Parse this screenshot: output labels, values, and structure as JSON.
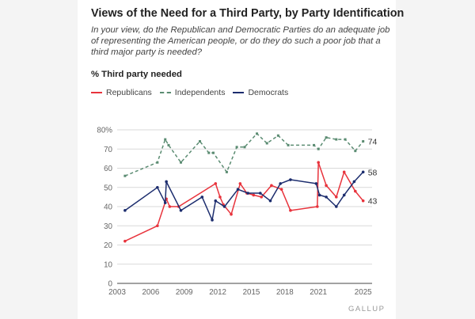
{
  "chart_data": {
    "type": "line",
    "title": "Views of the Need for a Third Party, by Party Identification",
    "subtitle": "In your view, do the Republican and Democratic Parties do an adequate job of representing the American people, or do they do such a poor job that a third major party is needed?",
    "measure": "% Third party needed",
    "xlim": [
      2003,
      2025.8
    ],
    "ylim": [
      0,
      80
    ],
    "x_ticks": [
      "2003",
      "2006",
      "2009",
      "2012",
      "2015",
      "2018",
      "2021",
      "2025"
    ],
    "y_ticks": [
      "0",
      "10",
      "20",
      "30",
      "40",
      "50",
      "60",
      "70",
      "80%"
    ],
    "grid": true,
    "legend_position": "top-left",
    "series": [
      {
        "name": "Republicans",
        "color": "#e8333c",
        "style": "solid",
        "end_label": "43",
        "points": [
          [
            2003.7,
            22
          ],
          [
            2006.6,
            30
          ],
          [
            2007.4,
            44
          ],
          [
            2007.7,
            40
          ],
          [
            2008.5,
            40
          ],
          [
            2011.8,
            52
          ],
          [
            2012.2,
            45
          ],
          [
            2012.5,
            41
          ],
          [
            2013.2,
            36
          ],
          [
            2014.0,
            52
          ],
          [
            2014.6,
            47
          ],
          [
            2015.2,
            46
          ],
          [
            2015.9,
            45
          ],
          [
            2016.8,
            51
          ],
          [
            2017.7,
            49
          ],
          [
            2018.5,
            38
          ],
          [
            2020.9,
            40
          ],
          [
            2021.0,
            63
          ],
          [
            2021.7,
            51
          ],
          [
            2022.6,
            45
          ],
          [
            2023.3,
            58
          ],
          [
            2024.3,
            48
          ],
          [
            2025.0,
            43
          ]
        ]
      },
      {
        "name": "Independents",
        "color": "#5b8c72",
        "style": "dashed",
        "end_label": "74",
        "points": [
          [
            2003.7,
            56
          ],
          [
            2006.6,
            63
          ],
          [
            2007.3,
            75
          ],
          [
            2007.6,
            72
          ],
          [
            2008.7,
            63
          ],
          [
            2010.4,
            74
          ],
          [
            2011.2,
            68
          ],
          [
            2011.6,
            68
          ],
          [
            2012.8,
            58
          ],
          [
            2013.7,
            71
          ],
          [
            2014.4,
            71
          ],
          [
            2015.5,
            78
          ],
          [
            2016.4,
            73
          ],
          [
            2017.4,
            77
          ],
          [
            2018.3,
            72
          ],
          [
            2020.6,
            72
          ],
          [
            2021.0,
            70
          ],
          [
            2021.7,
            76
          ],
          [
            2022.6,
            75
          ],
          [
            2023.4,
            75
          ],
          [
            2024.3,
            69
          ],
          [
            2025.0,
            74
          ]
        ]
      },
      {
        "name": "Democrats",
        "color": "#1c2d6e",
        "style": "solid",
        "end_label": "58",
        "points": [
          [
            2003.7,
            38
          ],
          [
            2006.6,
            50
          ],
          [
            2007.3,
            42
          ],
          [
            2007.4,
            53
          ],
          [
            2008.7,
            38
          ],
          [
            2010.6,
            45
          ],
          [
            2011.5,
            33
          ],
          [
            2011.8,
            43
          ],
          [
            2012.6,
            40
          ],
          [
            2013.8,
            49
          ],
          [
            2014.7,
            47
          ],
          [
            2015.8,
            47
          ],
          [
            2016.7,
            43
          ],
          [
            2017.6,
            52
          ],
          [
            2018.5,
            54
          ],
          [
            2020.8,
            52
          ],
          [
            2021.1,
            46
          ],
          [
            2021.7,
            45
          ],
          [
            2022.6,
            40
          ],
          [
            2023.3,
            46
          ],
          [
            2024.2,
            53
          ],
          [
            2025.0,
            58
          ]
        ]
      }
    ]
  },
  "source_mark": "GALLUP"
}
